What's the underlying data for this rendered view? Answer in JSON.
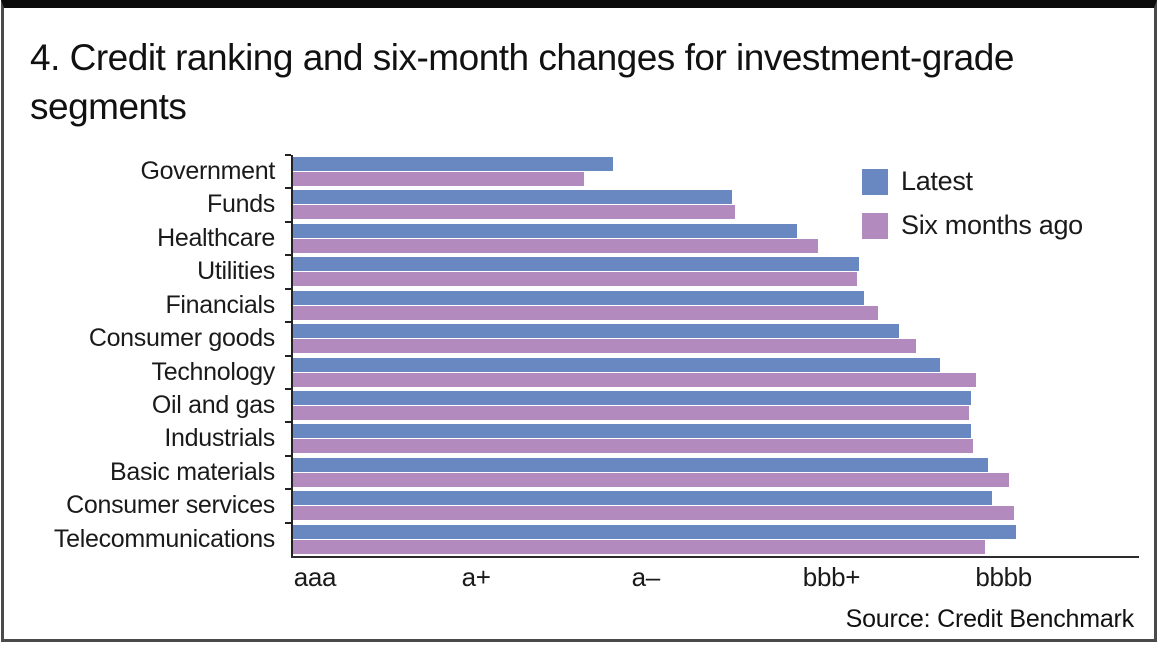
{
  "chart_data": {
    "type": "bar",
    "orientation": "horizontal",
    "title": "4. Credit ranking and six-month changes for investment-grade segments",
    "categories": [
      "Government",
      "Funds",
      "Healthcare",
      "Utilities",
      "Financials",
      "Consumer goods",
      "Technology",
      "Oil and gas",
      "Industrials",
      "Basic materials",
      "Consumer services",
      "Telecommunications"
    ],
    "series": [
      {
        "name": "Latest",
        "color": "#6987c1",
        "values": [
          1.86,
          2.55,
          2.93,
          3.29,
          3.32,
          3.52,
          3.76,
          3.94,
          3.94,
          4.04,
          4.06,
          4.2
        ]
      },
      {
        "name": "Six months ago",
        "color": "#b28abd",
        "values": [
          1.69,
          2.57,
          3.05,
          3.28,
          3.4,
          3.62,
          3.97,
          3.93,
          3.95,
          4.16,
          4.19,
          4.02
        ]
      }
    ],
    "x_axis": {
      "tick_labels": [
        "aaa",
        "a+",
        "a–",
        "bbb+",
        "bbbb"
      ],
      "tick_positions_pct": [
        2.6,
        21.7,
        41.8,
        63.8,
        84.2
      ],
      "xlim": [
        0,
        4.905
      ]
    },
    "legend_position": "inside-top-right",
    "grid": "off",
    "source": "Source: Credit Benchmark"
  },
  "colors": {
    "latest": "#6987c1",
    "six_months_ago": "#b28abd",
    "axis": "#2b2b2b",
    "frame_border": "#4a4a4a",
    "top_rule": "#0b0b0b"
  }
}
